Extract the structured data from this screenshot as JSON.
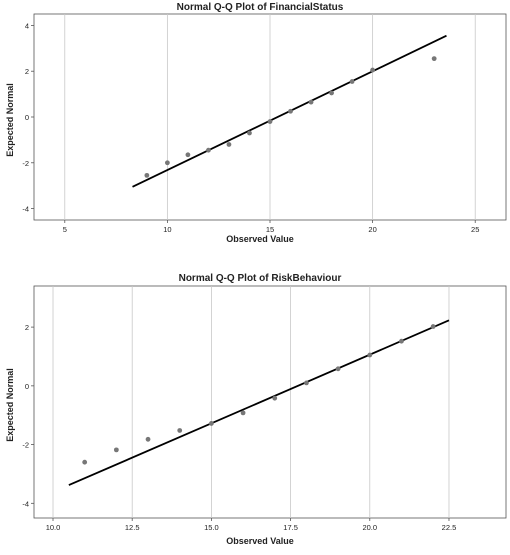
{
  "chart_data": [
    {
      "type": "scatter",
      "title": "Normal Q-Q Plot of FinancialStatus",
      "xlabel": "Observed Value",
      "ylabel": "Expected Normal",
      "xlim": [
        3.5,
        26.5
      ],
      "ylim": [
        -4.5,
        4.5
      ],
      "xticks": [
        5,
        10,
        15,
        20,
        25
      ],
      "yticks": [
        -4,
        -2,
        0,
        2,
        4
      ],
      "xtick_labels": [
        "5",
        "10",
        "15",
        "20",
        "25"
      ],
      "ytick_labels": [
        "-4",
        "-2",
        "0",
        "2",
        "4"
      ],
      "grid": "vertical",
      "point_color": "#777777",
      "line_color": "#000000",
      "points": [
        {
          "x": 9,
          "y": -2.55
        },
        {
          "x": 10,
          "y": -2.0
        },
        {
          "x": 11,
          "y": -1.65
        },
        {
          "x": 12,
          "y": -1.45
        },
        {
          "x": 13,
          "y": -1.2
        },
        {
          "x": 14,
          "y": -0.7
        },
        {
          "x": 15,
          "y": -0.2
        },
        {
          "x": 16,
          "y": 0.25
        },
        {
          "x": 17,
          "y": 0.65
        },
        {
          "x": 18,
          "y": 1.05
        },
        {
          "x": 19,
          "y": 1.55
        },
        {
          "x": 20,
          "y": 2.05
        },
        {
          "x": 23,
          "y": 2.55
        }
      ],
      "reference_line": {
        "x": [
          8.3,
          23.6
        ],
        "y": [
          -3.05,
          3.55
        ]
      }
    },
    {
      "type": "scatter",
      "title": "Normal Q-Q Plot of RiskBehaviour",
      "xlabel": "Observed Value",
      "ylabel": "Expected Normal",
      "xlim": [
        9.4,
        24.3
      ],
      "ylim": [
        -4.5,
        3.4
      ],
      "xticks": [
        10,
        12.5,
        15,
        17.5,
        20,
        22.5
      ],
      "yticks": [
        -4,
        -2,
        0,
        2
      ],
      "xtick_labels": [
        "10.0",
        "12.5",
        "15.0",
        "17.5",
        "20.0",
        "22.5"
      ],
      "ytick_labels": [
        "-4",
        "-2",
        "0",
        "2"
      ],
      "grid": "vertical",
      "point_color": "#777777",
      "line_color": "#000000",
      "points": [
        {
          "x": 11,
          "y": -2.6
        },
        {
          "x": 12,
          "y": -2.18
        },
        {
          "x": 13,
          "y": -1.82
        },
        {
          "x": 14,
          "y": -1.52
        },
        {
          "x": 15,
          "y": -1.28
        },
        {
          "x": 16,
          "y": -0.92
        },
        {
          "x": 17,
          "y": -0.42
        },
        {
          "x": 18,
          "y": 0.1
        },
        {
          "x": 19,
          "y": 0.58
        },
        {
          "x": 20,
          "y": 1.05
        },
        {
          "x": 21,
          "y": 1.52
        },
        {
          "x": 22,
          "y": 2.02
        }
      ],
      "reference_line": {
        "x": [
          10.5,
          22.5
        ],
        "y": [
          -3.38,
          2.23
        ]
      }
    }
  ]
}
